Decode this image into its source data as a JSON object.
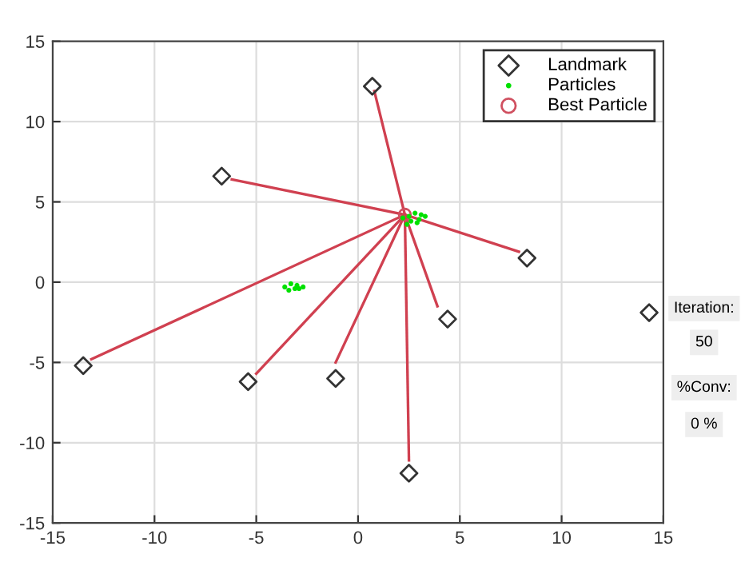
{
  "chart_data": {
    "type": "scatter",
    "xlim": [
      -15,
      15
    ],
    "ylim": [
      -15,
      15
    ],
    "xticks": [
      -15,
      -10,
      -5,
      0,
      5,
      10,
      15
    ],
    "yticks": [
      -15,
      -10,
      -5,
      0,
      5,
      10,
      15
    ],
    "grid": true,
    "legend": "top right",
    "series": [
      {
        "name": "Landmark",
        "marker": "diamond",
        "color": "#333333",
        "x": [
          0.7,
          -6.7,
          8.3,
          4.4,
          14.3,
          -13.5,
          -5.4,
          -1.1,
          2.5
        ],
        "values": [
          12.2,
          6.6,
          1.5,
          -2.3,
          -1.9,
          -5.2,
          -6.2,
          -6.0,
          -11.9
        ]
      },
      {
        "name": "Particles",
        "marker": "circle",
        "color": "#00e000",
        "x": [
          2.2,
          2.5,
          2.8,
          3.1,
          3.3,
          2.6,
          3.0,
          2.4,
          2.9,
          -3.6,
          -3.3,
          -3.0,
          -2.7,
          -3.4,
          -3.1,
          -2.9
        ],
        "values": [
          4.0,
          4.1,
          4.3,
          4.2,
          4.1,
          3.8,
          3.9,
          3.6,
          3.7,
          -0.3,
          -0.1,
          -0.2,
          -0.3,
          -0.5,
          -0.4,
          -0.4
        ]
      },
      {
        "name": "Best Particle",
        "marker": "circle",
        "color": "#d05060",
        "x": [
          2.3
        ],
        "values": [
          4.2
        ]
      },
      {
        "type": "line",
        "marker": "none",
        "color": "#d04050",
        "x": [
          2.3,
          0.8
        ],
        "values": [
          4.2,
          11.9
        ]
      },
      {
        "type": "line",
        "marker": "none",
        "color": "#d04050",
        "x": [
          2.3,
          -6.2
        ],
        "values": [
          4.2,
          6.4
        ]
      },
      {
        "type": "line",
        "marker": "none",
        "color": "#d04050",
        "x": [
          2.3,
          7.9
        ],
        "values": [
          4.2,
          1.9
        ]
      },
      {
        "type": "line",
        "marker": "none",
        "color": "#d04050",
        "x": [
          2.3,
          3.9
        ],
        "values": [
          4.2,
          -1.5
        ]
      },
      {
        "type": "line",
        "marker": "none",
        "color": "#d04050",
        "x": [
          2.3,
          -13.1
        ],
        "values": [
          4.2,
          -4.8
        ]
      },
      {
        "type": "line",
        "marker": "none",
        "color": "#d04050",
        "x": [
          2.3,
          -5.0
        ],
        "values": [
          4.2,
          -5.7
        ]
      },
      {
        "type": "line",
        "marker": "none",
        "color": "#d04050",
        "x": [
          2.3,
          -1.1
        ],
        "values": [
          4.2,
          -5.0
        ]
      },
      {
        "type": "line",
        "marker": "none",
        "color": "#d04050",
        "x": [
          2.3,
          2.5
        ],
        "values": [
          4.2,
          -11.1
        ]
      }
    ],
    "annotations": [
      "Iteration:",
      "50",
      "%Conv:",
      "0 %"
    ]
  }
}
